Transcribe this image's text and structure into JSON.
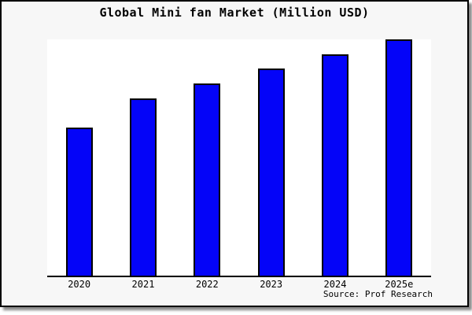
{
  "title": "Global Mini fan Market (Million USD)",
  "source_note": "Source: Prof Research",
  "colors": {
    "bar_fill": "#0404f8",
    "bar_border": "#000000",
    "frame_background": "#f7f7f7",
    "plot_background": "#ffffff",
    "axis_line": "#000000",
    "frame_border": "#000000",
    "drop_shadow": "#8a8a8a",
    "text": "#000000"
  },
  "chart_data": {
    "type": "bar",
    "title": "Global Mini fan Market (Million USD)",
    "categories": [
      "2020",
      "2021",
      "2022",
      "2023",
      "2024",
      "2025e"
    ],
    "values": [
      188,
      225,
      244,
      263,
      281,
      300
    ],
    "values_note": "No y-axis ticks or gridlines are shown; values are relative bar heights measured in pixels from the x-axis baseline.",
    "xlabel": "",
    "ylabel": "",
    "y_axis_visible": false,
    "gridlines": false,
    "legend": false,
    "bar_color": "#0404f8",
    "bar_border_color": "#000000",
    "annotations": [
      "Source: Prof Research"
    ]
  }
}
